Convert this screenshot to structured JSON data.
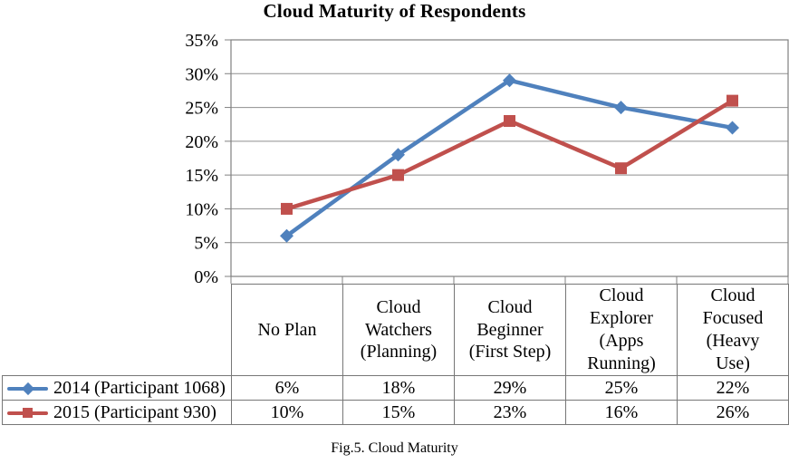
{
  "chart_title": "Cloud Maturity of Respondents",
  "caption": "Fig.5. Cloud Maturity",
  "colors": {
    "background": "#FFFFFF",
    "grid": "#8F8F8F",
    "axis": "#808080",
    "table_border": "#777777",
    "text": "#000000",
    "series_2014": "#4F81BD",
    "series_2015": "#C0504D"
  },
  "chart_data": {
    "type": "line",
    "title": "Cloud Maturity of Respondents",
    "xlabel": "",
    "ylabel": "",
    "ylim": [
      0,
      35
    ],
    "ytick_step": 5,
    "ytick_labels": [
      "0%",
      "5%",
      "10%",
      "15%",
      "20%",
      "25%",
      "30%",
      "35%"
    ],
    "grid": true,
    "legend_position": "data-table-left",
    "categories": [
      "No Plan",
      "Cloud Watchers (Planning)",
      "Cloud Beginner (First Step)",
      "Cloud Explorer (Apps Running)",
      "Cloud Focused (Heavy Use)"
    ],
    "series": [
      {
        "name": "2014 (Participant 1068)",
        "color": "#4F81BD",
        "marker": "diamond",
        "values": [
          6,
          18,
          29,
          25,
          22
        ],
        "values_display": [
          "6%",
          "18%",
          "29%",
          "25%",
          "22%"
        ]
      },
      {
        "name": "2015 (Participant 930)",
        "color": "#C0504D",
        "marker": "square",
        "values": [
          10,
          15,
          23,
          16,
          26
        ],
        "values_display": [
          "10%",
          "15%",
          "23%",
          "16%",
          "26%"
        ]
      }
    ]
  }
}
